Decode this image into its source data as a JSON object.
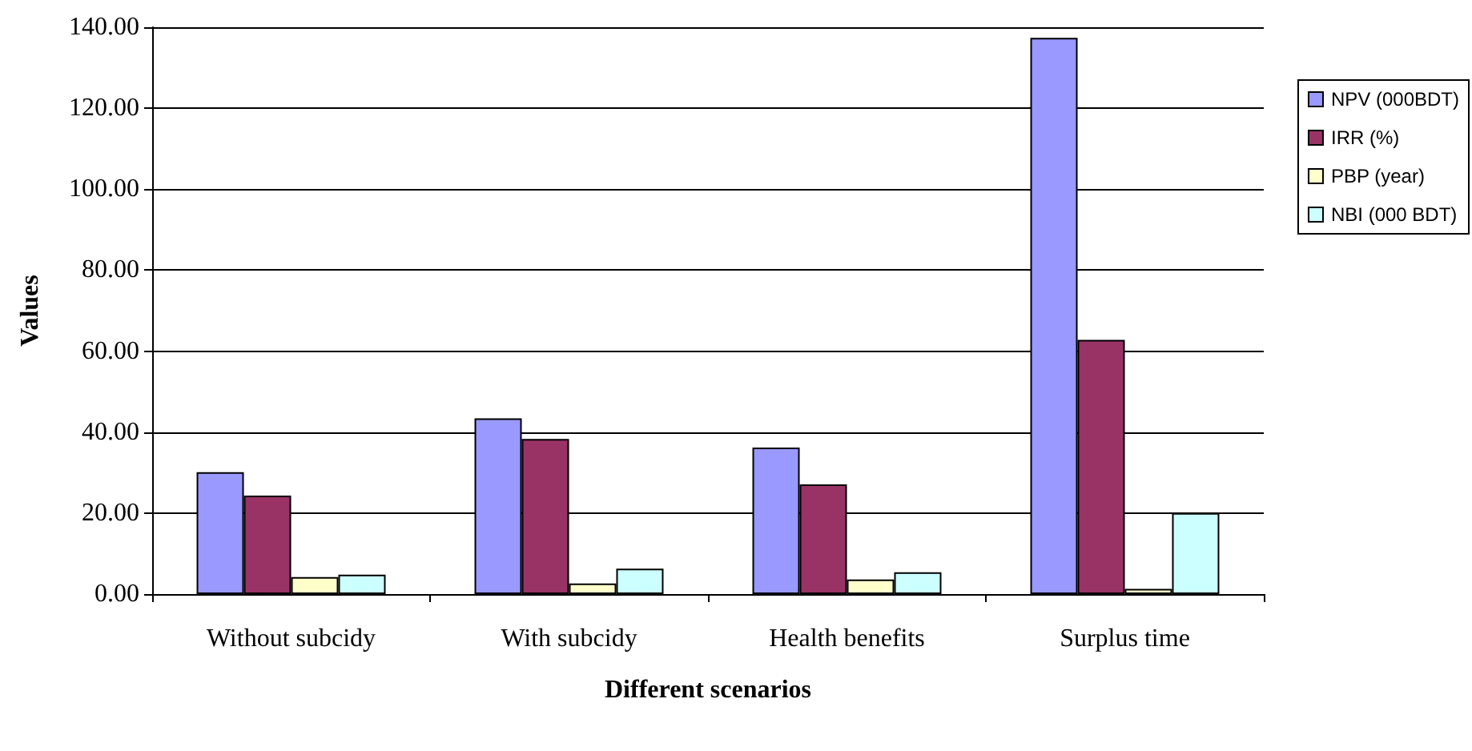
{
  "chart_data": {
    "type": "bar",
    "xlabel": "Different scenarios",
    "ylabel": "Values",
    "categories": [
      "Without subcidy",
      "With subcidy",
      "Health benefits",
      "Surplus time"
    ],
    "series": [
      {
        "name": "NPV (000BDT)",
        "color": "#9999ff",
        "values": [
          30.1,
          43.4,
          36.2,
          137.4
        ]
      },
      {
        "name": "IRR (%)",
        "color": "#993366",
        "values": [
          24.3,
          38.3,
          27.1,
          62.8
        ]
      },
      {
        "name": "PBP (year)",
        "color": "#ffffcc",
        "values": [
          4.2,
          2.6,
          3.6,
          1.3
        ]
      },
      {
        "name": "NBI (000 BDT)",
        "color": "#ccffff",
        "values": [
          4.8,
          6.3,
          5.4,
          20
        ]
      }
    ],
    "ylim": [
      0,
      140
    ],
    "yticks": [
      {
        "value": 0,
        "label": "0.00"
      },
      {
        "value": 20,
        "label": "20.00"
      },
      {
        "value": 40,
        "label": "40.00"
      },
      {
        "value": 60,
        "label": "60.00"
      },
      {
        "value": 80,
        "label": "80.00"
      },
      {
        "value": 100,
        "label": "100.00"
      },
      {
        "value": 120,
        "label": "120.00"
      },
      {
        "value": 140,
        "label": "140.00"
      }
    ],
    "grid": "y",
    "legend": "right"
  }
}
